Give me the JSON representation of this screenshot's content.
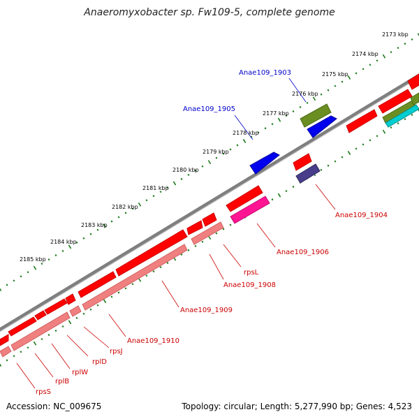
{
  "title": "Anaeromyxobacter sp. Fw109-5, complete genome",
  "footer": {
    "accession": "Accession: NC_009675",
    "summary": "Topology: circular; Length: 5,277,990 bp; Genes: 4,523"
  },
  "colors": {
    "forward_cds": "#ff0000",
    "reverse_cds": "#ff0000",
    "rrna_pink": "#f08080",
    "magenta": "#ff1493",
    "olive": "#6b8e23",
    "blue": "#0000ee",
    "slate": "#483d8b",
    "teal": "#00ced1",
    "backbone": "#808080",
    "tick_green": "#006400",
    "label_blue": "#0000cc",
    "label_red": "#cc0000"
  },
  "kbp_ticks": [
    "2173 kbp",
    "2174 kbp",
    "2175 kbp",
    "2176 kbp",
    "2177 kbp",
    "2178 kbp",
    "2179 kbp",
    "2180 kbp",
    "2181 kbp",
    "2182 kbp",
    "2183 kbp",
    "2184 kbp",
    "2185 kbp"
  ],
  "gene_labels": [
    {
      "text": "Anae109_1903",
      "color": "blue"
    },
    {
      "text": "Anae109_1905",
      "color": "blue"
    },
    {
      "text": "Anae109_1904",
      "color": "red"
    },
    {
      "text": "Anae109_1906",
      "color": "red"
    },
    {
      "text": "rpsL",
      "color": "red"
    },
    {
      "text": "Anae109_1908",
      "color": "red"
    },
    {
      "text": "Anae109_1909",
      "color": "red"
    },
    {
      "text": "Anae109_1910",
      "color": "red"
    },
    {
      "text": "rpsJ",
      "color": "red"
    },
    {
      "text": "rplD",
      "color": "red"
    },
    {
      "text": "rplW",
      "color": "red"
    },
    {
      "text": "rplB",
      "color": "red"
    },
    {
      "text": "rpsS",
      "color": "red"
    }
  ]
}
